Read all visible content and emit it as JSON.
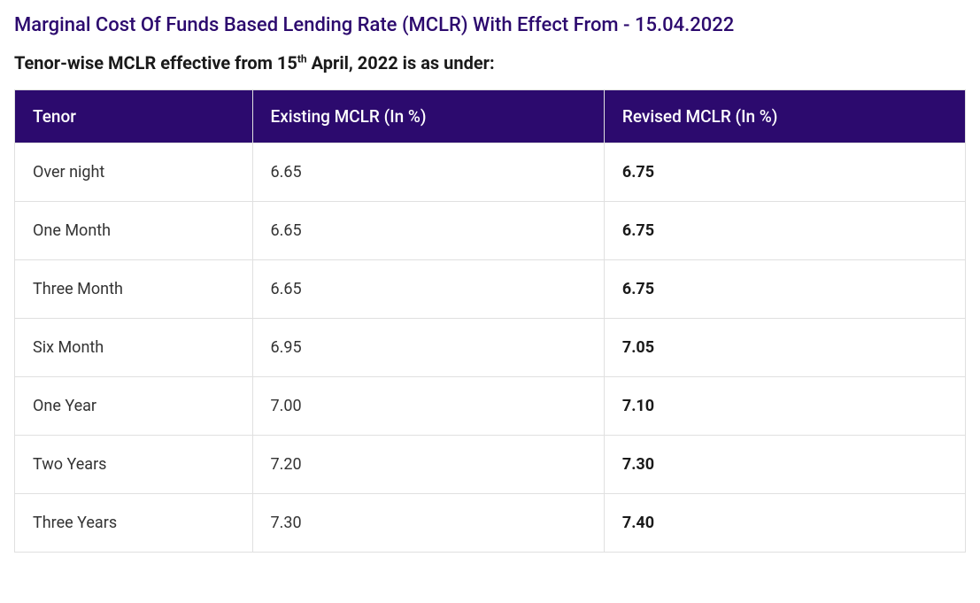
{
  "title": "Marginal Cost Of Funds Based Lending Rate (MCLR) With Effect From - 15.04.2022",
  "subtitle_prefix": "Tenor-wise MCLR effective from 15",
  "subtitle_sup": "th",
  "subtitle_suffix": " April, 2022 is as under:",
  "table": {
    "type": "table",
    "header_bg": "#2c0a6e",
    "header_color": "#ffffff",
    "border_color": "#e0e0e0",
    "cell_bg": "#ffffff",
    "text_color": "#333333",
    "revised_font_weight": 700,
    "header_fontsize": 19,
    "cell_fontsize": 18,
    "column_widths": [
      "25%",
      "37%",
      "38%"
    ],
    "columns": [
      "Tenor",
      "Existing MCLR (In %)",
      "Revised MCLR (In %)"
    ],
    "rows": [
      [
        "Over night",
        "6.65",
        "6.75"
      ],
      [
        "One Month",
        "6.65",
        "6.75"
      ],
      [
        "Three Month",
        "6.65",
        "6.75"
      ],
      [
        "Six Month",
        "6.95",
        "7.05"
      ],
      [
        "One Year",
        "7.00",
        "7.10"
      ],
      [
        "Two Years",
        "7.20",
        "7.30"
      ],
      [
        "Three Years",
        "7.30",
        "7.40"
      ]
    ]
  }
}
